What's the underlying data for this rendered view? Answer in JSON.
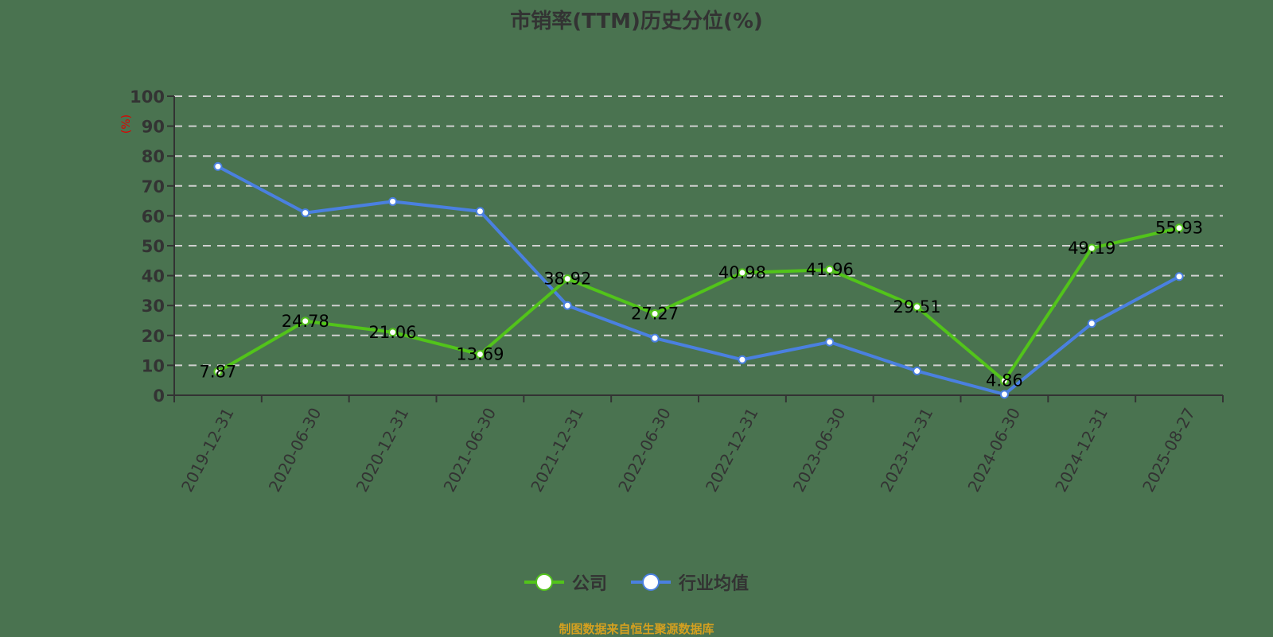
{
  "title": "市销率(TTM)历史分位(%)",
  "y_unit_label": "(%)",
  "legend": [
    {
      "label": "公司",
      "color": "#52c41a"
    },
    {
      "label": "行业均值",
      "color": "#4a80e0"
    }
  ],
  "footer": "制图数据来自恒生聚源数据库",
  "colors": {
    "background": "#4a7350",
    "company": "#52c41a",
    "industry": "#4a80e0",
    "axis": "#333333",
    "grid": "#d0d0d0",
    "footer": "#d4a020"
  },
  "chart_data": {
    "type": "line",
    "title": "市销率(TTM)历史分位(%)",
    "xlabel": "",
    "ylabel": "(%)",
    "ylim": [
      0,
      100
    ],
    "yticks": [
      0,
      10,
      20,
      30,
      40,
      50,
      60,
      70,
      80,
      90,
      100
    ],
    "grid": true,
    "legend_position": "bottom",
    "categories": [
      "2019-12-31",
      "2020-06-30",
      "2020-12-31",
      "2021-06-30",
      "2021-12-31",
      "2022-06-30",
      "2022-12-31",
      "2023-06-30",
      "2023-12-31",
      "2024-06-30",
      "2024-12-31",
      "2025-08-27"
    ],
    "series": [
      {
        "name": "公司",
        "values": [
          7.87,
          24.78,
          21.06,
          13.69,
          38.92,
          27.27,
          40.98,
          41.96,
          29.51,
          4.86,
          49.19,
          55.93
        ],
        "labels_shown": true
      },
      {
        "name": "行业均值",
        "values": [
          76.5,
          61.0,
          64.8,
          61.5,
          30.0,
          19.1,
          11.9,
          17.8,
          8.1,
          0.3,
          24.0,
          39.7
        ],
        "labels_shown": false
      }
    ]
  }
}
